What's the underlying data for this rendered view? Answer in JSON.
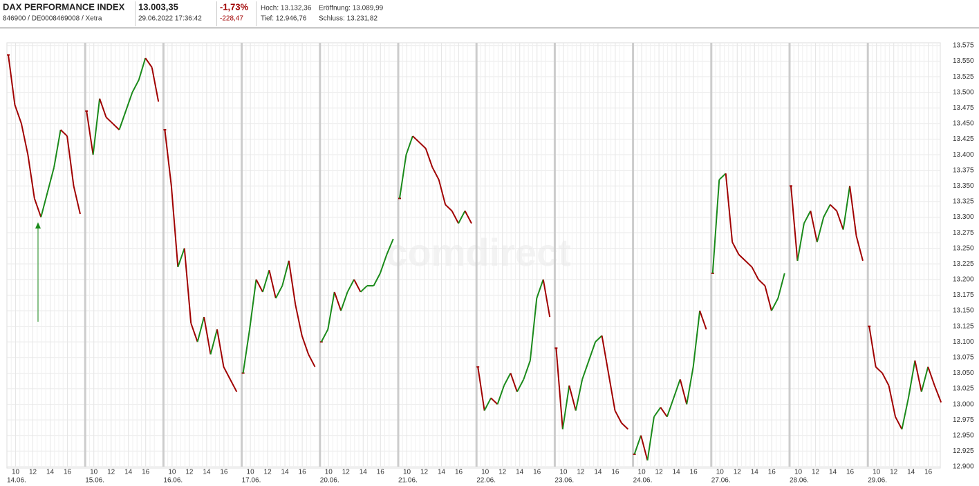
{
  "header": {
    "title": "DAX PERFORMANCE INDEX",
    "subtitle": "846900 / DE0008469008 / Xetra",
    "price": "13.003,35",
    "timestamp": "29.06.2022 17:36:42",
    "change_pct": "-1,73%",
    "change_abs": "-228,47",
    "high": "Hoch: 13.132,36",
    "open": "Eröffnung: 13.089,99",
    "low": "Tief: 12.946,76",
    "close": "Schluss: 13.231,82"
  },
  "watermark": "comdirect",
  "chart_data": {
    "type": "line",
    "up_color": "#1a8a1a",
    "down_color": "#a00000",
    "hour_ticks": [
      10,
      12,
      14,
      16
    ],
    "ylim": [
      12900,
      13575
    ],
    "yticks": [
      {
        "value": 12900,
        "label": "12.900"
      },
      {
        "value": 12925,
        "label": "12.925"
      },
      {
        "value": 12950,
        "label": "12.950"
      },
      {
        "value": 12975,
        "label": "12.975"
      },
      {
        "value": 13000,
        "label": "13.000"
      },
      {
        "value": 13025,
        "label": "13.025"
      },
      {
        "value": 13050,
        "label": "13.050"
      },
      {
        "value": 13075,
        "label": "13.075"
      },
      {
        "value": 13100,
        "label": "13.100"
      },
      {
        "value": 13125,
        "label": "13.125"
      },
      {
        "value": 13150,
        "label": "13.150"
      },
      {
        "value": 13175,
        "label": "13.175"
      },
      {
        "value": 13200,
        "label": "13.200"
      },
      {
        "value": 13225,
        "label": "13.225"
      },
      {
        "value": 13250,
        "label": "13.250"
      },
      {
        "value": 13275,
        "label": "13.275"
      },
      {
        "value": 13300,
        "label": "13.300"
      },
      {
        "value": 13325,
        "label": "13.325"
      },
      {
        "value": 13350,
        "label": "13.350"
      },
      {
        "value": 13375,
        "label": "13.375"
      },
      {
        "value": 13400,
        "label": "13.400"
      },
      {
        "value": 13425,
        "label": "13.425"
      },
      {
        "value": 13450,
        "label": "13.450"
      },
      {
        "value": 13475,
        "label": "13.475"
      },
      {
        "value": 13500,
        "label": "13.500"
      },
      {
        "value": 13525,
        "label": "13.525"
      },
      {
        "value": 13550,
        "label": "13.550"
      },
      {
        "value": 13575,
        "label": "13.575"
      }
    ],
    "days": [
      {
        "label": "14.06.",
        "values": [
          13560,
          13480,
          13450,
          13400,
          13330,
          13300,
          13340,
          13380,
          13440,
          13430,
          13350,
          13305
        ]
      },
      {
        "label": "15.06.",
        "values": [
          13470,
          13400,
          13490,
          13460,
          13450,
          13440,
          13470,
          13500,
          13520,
          13555,
          13540,
          13485
        ]
      },
      {
        "label": "16.06.",
        "values": [
          13440,
          13350,
          13220,
          13250,
          13130,
          13100,
          13140,
          13080,
          13120,
          13060,
          13040,
          13020
        ]
      },
      {
        "label": "17.06.",
        "values": [
          13050,
          13120,
          13200,
          13180,
          13215,
          13170,
          13190,
          13230,
          13160,
          13110,
          13080,
          13060
        ]
      },
      {
        "label": "20.06.",
        "values": [
          13100,
          13120,
          13180,
          13150,
          13180,
          13200,
          13180,
          13190,
          13190,
          13210,
          13240,
          13265
        ]
      },
      {
        "label": "21.06.",
        "values": [
          13330,
          13400,
          13430,
          13420,
          13410,
          13380,
          13360,
          13320,
          13310,
          13290,
          13310,
          13290
        ]
      },
      {
        "label": "22.06.",
        "values": [
          13060,
          12990,
          13010,
          13000,
          13030,
          13050,
          13020,
          13040,
          13070,
          13170,
          13200,
          13140
        ]
      },
      {
        "label": "23.06.",
        "values": [
          13090,
          12960,
          13030,
          12990,
          13040,
          13070,
          13100,
          13110,
          13050,
          12990,
          12970,
          12960
        ]
      },
      {
        "label": "24.06.",
        "values": [
          12920,
          12950,
          12910,
          12980,
          12995,
          12980,
          13010,
          13040,
          13000,
          13060,
          13150,
          13120
        ]
      },
      {
        "label": "27.06.",
        "values": [
          13210,
          13360,
          13370,
          13260,
          13240,
          13230,
          13220,
          13200,
          13190,
          13150,
          13170,
          13210
        ]
      },
      {
        "label": "28.06.",
        "values": [
          13350,
          13230,
          13290,
          13310,
          13260,
          13300,
          13320,
          13310,
          13280,
          13350,
          13270,
          13230
        ]
      },
      {
        "label": "29.06.",
        "values": [
          13125,
          13060,
          13050,
          13030,
          12980,
          12960,
          13010,
          13070,
          13020,
          13060,
          13030,
          13003
        ]
      }
    ]
  }
}
